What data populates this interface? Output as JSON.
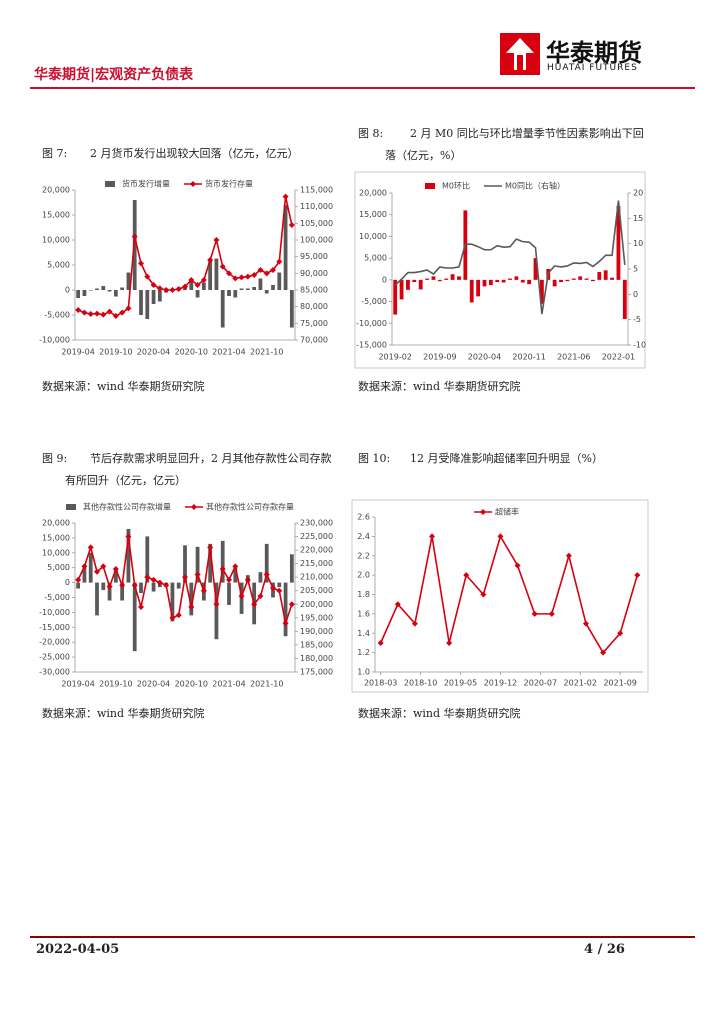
{
  "header": {
    "title": "华泰期货|宏观资产负债表",
    "logo_cn": "华泰期货",
    "logo_en": "HUATAI FUTURES"
  },
  "chart_data": [
    {
      "type": "bar-line",
      "label": "图 7:",
      "title": "2 月货币发行出现较大回落（亿元，亿元）",
      "source": "数据来源：wind 华泰期货研究院",
      "categories": [
        "2019-04",
        null,
        null,
        null,
        null,
        null,
        "2019-10",
        null,
        null,
        null,
        null,
        null,
        "2020-04",
        null,
        null,
        null,
        null,
        null,
        "2020-10",
        null,
        null,
        null,
        null,
        null,
        "2021-04",
        null,
        null,
        null,
        null,
        null,
        "2021-10",
        null,
        null,
        null,
        null
      ],
      "series": [
        {
          "name": "货币发行增量",
          "kind": "bar",
          "color": "#595959",
          "values": [
            -1600,
            -1200,
            -100,
            300,
            800,
            -300,
            -1300,
            500,
            3500,
            18000,
            -5000,
            -5800,
            -2800,
            -2300,
            -500,
            0,
            300,
            600,
            2000,
            -1500,
            1500,
            6000,
            6300,
            -7500,
            -1200,
            -1500,
            300,
            300,
            600,
            2300,
            -700,
            1000,
            3500,
            17000,
            -7500
          ]
        },
        {
          "name": "货币发行存量",
          "kind": "line",
          "axis": "y2",
          "marker": "diamond",
          "color": "#d7000f",
          "values": [
            79000,
            78200,
            77800,
            77900,
            77600,
            78500,
            77200,
            78200,
            79500,
            101000,
            93000,
            89000,
            86500,
            85500,
            85000,
            85000,
            85300,
            86000,
            88000,
            86500,
            88000,
            94000,
            100000,
            92000,
            90000,
            88500,
            88800,
            89000,
            89500,
            91000,
            90000,
            91000,
            93500,
            113000,
            104500
          ]
        }
      ],
      "ylim": [
        -10000,
        20000
      ],
      "yticks": [
        {
          "value": -10000,
          "label": "-10,000"
        },
        {
          "value": -5000,
          "label": "-5,000"
        },
        0,
        {
          "value": 5000,
          "label": "5,000"
        },
        {
          "value": 10000,
          "label": "10,000"
        },
        {
          "value": 15000,
          "label": "15,000"
        },
        {
          "value": 20000,
          "label": "20,000"
        }
      ],
      "y2lim": [
        70000,
        115000
      ],
      "y2ticks": [
        {
          "value": 70000,
          "label": "70,000"
        },
        {
          "value": 75000,
          "label": "75,000"
        },
        {
          "value": 80000,
          "label": "80,000"
        },
        {
          "value": 85000,
          "label": "85,000"
        },
        {
          "value": 90000,
          "label": "90,000"
        },
        {
          "value": 95000,
          "label": "95,000"
        },
        {
          "value": 100000,
          "label": "100,000"
        },
        {
          "value": 105000,
          "label": "105,000"
        },
        {
          "value": 110000,
          "label": "110,000"
        },
        {
          "value": 115000,
          "label": "115,000"
        }
      ]
    },
    {
      "type": "bar-line",
      "label": "图 8:",
      "title": "2 月 M0 同比与环比增量季节性因素影响出下回落（亿元，%）",
      "source": "数据来源：wind 华泰期货研究院",
      "categories": [
        "2019-02",
        null,
        null,
        null,
        null,
        null,
        null,
        "2019-09",
        null,
        null,
        null,
        null,
        null,
        null,
        "2020-04",
        null,
        null,
        null,
        null,
        null,
        null,
        "2020-11",
        null,
        null,
        null,
        null,
        null,
        null,
        "2021-06",
        null,
        null,
        null,
        null,
        null,
        null,
        "2022-01",
        null
      ],
      "series": [
        {
          "name": "M0环比",
          "kind": "bar",
          "color": "#d7000f",
          "values": [
            -8000,
            -4500,
            -2300,
            -500,
            -2200,
            300,
            800,
            -300,
            300,
            1300,
            800,
            16000,
            -5200,
            -3800,
            -1500,
            -1200,
            -500,
            -600,
            300,
            800,
            -600,
            -1000,
            5000,
            -5500,
            2500,
            -1500,
            -500,
            -300,
            300,
            800,
            300,
            -300,
            1800,
            2200,
            500,
            17000,
            -9000
          ]
        },
        {
          "name": "M0同比（右轴）",
          "kind": "line",
          "axis": "y2",
          "color": "#595959",
          "values": [
            1.8,
            3.0,
            4.3,
            4.3,
            4.5,
            4.8,
            4.0,
            5.4,
            5.2,
            5.2,
            5.4,
            9.9,
            9.9,
            9.4,
            8.8,
            8.8,
            9.6,
            9.3,
            9.4,
            10.9,
            10.4,
            10.3,
            9.2,
            -3.9,
            4.2,
            5.6,
            5.4,
            5.6,
            6.2,
            6.1,
            6.3,
            5.5,
            6.5,
            7.7,
            7.7,
            18.5,
            5.8
          ]
        }
      ],
      "ylim": [
        -15000,
        20000
      ],
      "yticks": [
        {
          "value": -15000,
          "label": "-15,000"
        },
        {
          "value": -10000,
          "label": "-10,000"
        },
        {
          "value": -5000,
          "label": "-5,000"
        },
        0,
        {
          "value": 5000,
          "label": "5,000"
        },
        {
          "value": 10000,
          "label": "10,000"
        },
        {
          "value": 15000,
          "label": "15,000"
        },
        {
          "value": 20000,
          "label": "20,000"
        }
      ],
      "y2lim": [
        -10,
        20
      ],
      "y2ticks": [
        -10,
        -5,
        0,
        5,
        10,
        15,
        20
      ]
    },
    {
      "type": "bar-line",
      "label": "图 9:",
      "title": "节后存款需求明显回升，2 月其他存款性公司存款有所回升（亿元，亿元）",
      "source": "数据来源：wind 华泰期货研究院",
      "categories": [
        "2019-04",
        null,
        null,
        null,
        null,
        null,
        "2019-10",
        null,
        null,
        null,
        null,
        null,
        "2020-04",
        null,
        null,
        null,
        null,
        null,
        "2020-10",
        null,
        null,
        null,
        null,
        null,
        "2021-04",
        null,
        null,
        null,
        null,
        null,
        "2021-10",
        null,
        null,
        null,
        null
      ],
      "series": [
        {
          "name": "其他存款性公司存款增量",
          "kind": "bar",
          "color": "#595959",
          "values": [
            -2000,
            5000,
            10000,
            -11000,
            -2500,
            -6000,
            4500,
            -6000,
            18000,
            -23000,
            -3500,
            15500,
            -3000,
            -1500,
            -1000,
            -13000,
            -2000,
            12500,
            -11000,
            12000,
            -6000,
            13000,
            -19000,
            14000,
            -7500,
            5000,
            -10500,
            2500,
            -14000,
            3500,
            13000,
            -5000,
            -1500,
            -18000,
            9500
          ]
        },
        {
          "name": "其他存款性公司存款存量",
          "kind": "line",
          "axis": "y2",
          "marker": "diamond",
          "color": "#d7000f",
          "values": [
            209000,
            214000,
            221000,
            212000,
            214000,
            206500,
            213000,
            207000,
            225000,
            207000,
            199000,
            210000,
            209000,
            208000,
            207000,
            195000,
            196000,
            210000,
            199000,
            211000,
            205000,
            221000,
            200000,
            213000,
            209000,
            214000,
            203000,
            209000,
            200000,
            203000,
            211000,
            206000,
            205000,
            193000,
            200000
          ]
        }
      ],
      "ylim": [
        -30000,
        20000
      ],
      "yticks": [
        {
          "value": -30000,
          "label": "-30,000"
        },
        {
          "value": -25000,
          "label": "-25,000"
        },
        {
          "value": -20000,
          "label": "-20,000"
        },
        {
          "value": -15000,
          "label": "-15,000"
        },
        {
          "value": -10000,
          "label": "-10,000"
        },
        {
          "value": -5000,
          "label": "-5,000"
        },
        0,
        {
          "value": 5000,
          "label": "5,000"
        },
        {
          "value": 10000,
          "label": "10,000"
        },
        {
          "value": 15000,
          "label": "15,000"
        },
        {
          "value": 20000,
          "label": "20,000"
        }
      ],
      "y2lim": [
        175000,
        230000
      ],
      "y2ticks": [
        {
          "value": 175000,
          "label": "175,000"
        },
        {
          "value": 180000,
          "label": "180,000"
        },
        {
          "value": 185000,
          "label": "185,000"
        },
        {
          "value": 190000,
          "label": "190,000"
        },
        {
          "value": 195000,
          "label": "195,000"
        },
        {
          "value": 200000,
          "label": "200,000"
        },
        {
          "value": 205000,
          "label": "205,000"
        },
        {
          "value": 210000,
          "label": "210,000"
        },
        {
          "value": 215000,
          "label": "215,000"
        },
        {
          "value": 220000,
          "label": "220,000"
        },
        {
          "value": 225000,
          "label": "225,000"
        },
        {
          "value": 230000,
          "label": "230,000"
        }
      ]
    },
    {
      "type": "line",
      "label": "图 10:",
      "title": "12 月受降准影响超储率回升明显（%）",
      "source": "数据来源：wind 华泰期货研究院",
      "x": [
        "2018-03",
        "2018-06",
        "2018-09",
        "2018-12",
        "2019-03",
        "2019-06",
        "2019-09",
        "2019-12",
        "2020-03",
        "2020-06",
        "2020-09",
        "2020-12",
        "2021-03",
        "2021-06",
        "2021-09",
        "2021-12"
      ],
      "xlim": [
        "2018-02",
        "2022-01"
      ],
      "xticks": [
        "2018-03",
        "2018-10",
        "2019-05",
        "2019-12",
        "2020-07",
        "2021-02",
        "2021-09"
      ],
      "series": [
        {
          "name": "超储率",
          "kind": "line",
          "marker": "diamond",
          "color": "#d7000f",
          "values": [
            1.3,
            1.7,
            1.5,
            2.4,
            1.3,
            2.0,
            1.8,
            2.4,
            2.1,
            1.6,
            1.6,
            2.2,
            1.5,
            1.2,
            1.4,
            2.0
          ]
        }
      ],
      "ylim": [
        1.0,
        2.6
      ],
      "yticks": [
        {
          "value": 1.0,
          "label": "1.0"
        },
        1.2,
        1.4,
        1.6,
        1.8,
        {
          "value": 2.0,
          "label": "2.0"
        },
        2.2,
        2.4,
        2.6
      ]
    }
  ],
  "footer": {
    "date": "2022-04-05",
    "page": "4 / 26"
  }
}
